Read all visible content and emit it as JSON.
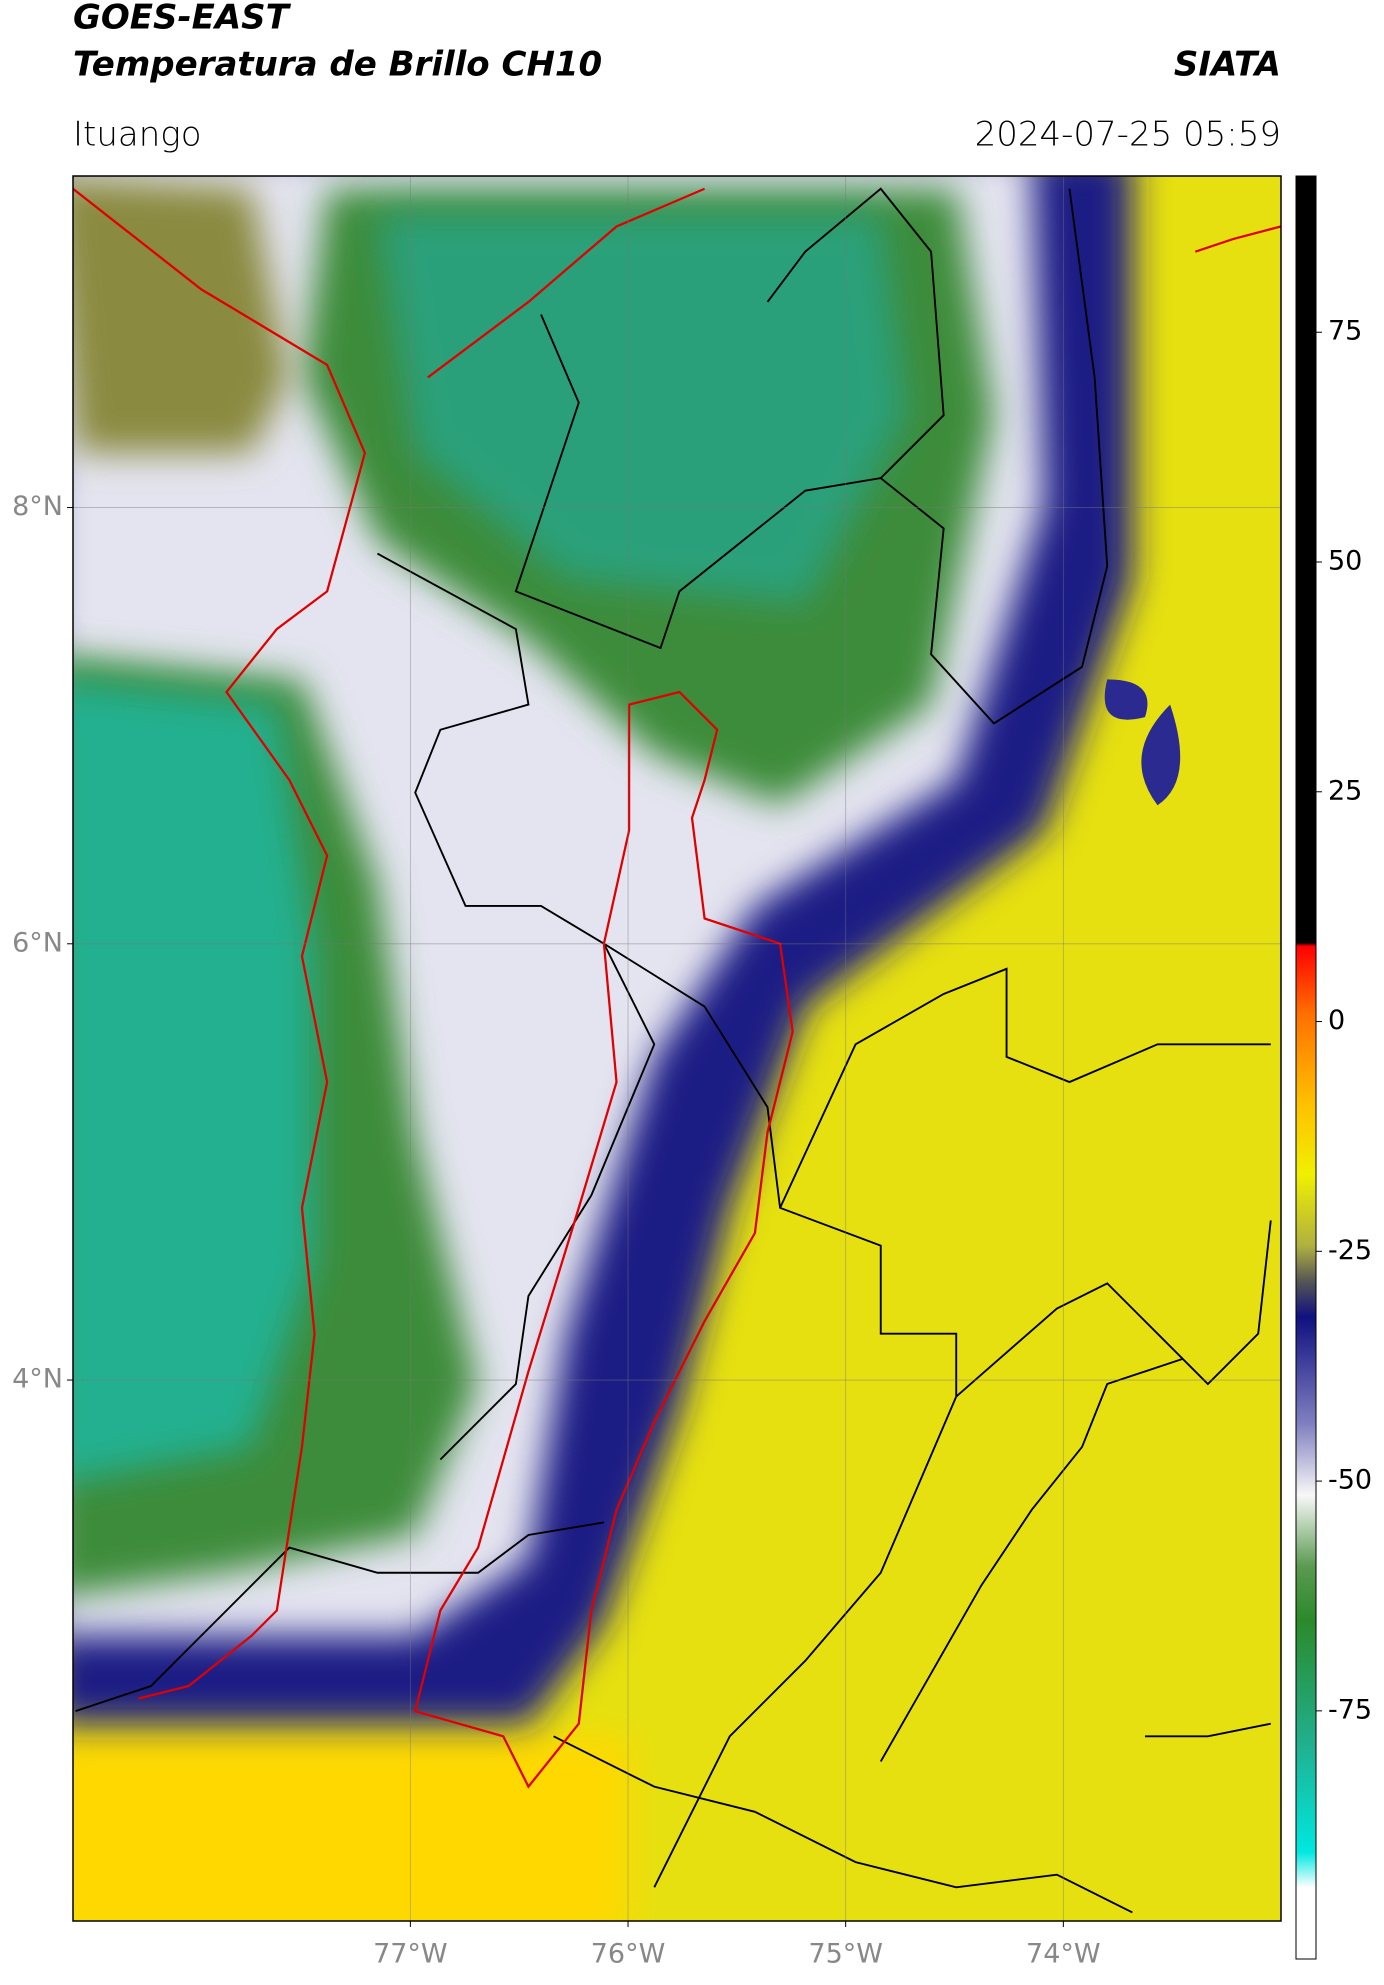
{
  "header": {
    "title": "GOES-EAST",
    "subtitle": "Temperatura de Brillo CH10",
    "brand": "SIATA",
    "location": "Ituango",
    "datetime": "2024-07-25 05:59"
  },
  "map": {
    "xlim": [
      -78.55,
      -73.0
    ],
    "ylim": [
      1.52,
      9.52
    ],
    "xticks": [
      {
        "value": -77,
        "label": "77°W"
      },
      {
        "value": -76,
        "label": "76°W"
      },
      {
        "value": -75,
        "label": "75°W"
      },
      {
        "value": -74,
        "label": "74°W"
      }
    ],
    "yticks": [
      {
        "value": 8,
        "label": "8°N"
      },
      {
        "value": 6,
        "label": "6°N"
      },
      {
        "value": 4,
        "label": "4°N"
      }
    ]
  },
  "colorbar": {
    "lim": [
      -102,
      92
    ],
    "ticks": [
      75,
      50,
      25,
      0,
      -25,
      -50,
      -75
    ]
  }
}
